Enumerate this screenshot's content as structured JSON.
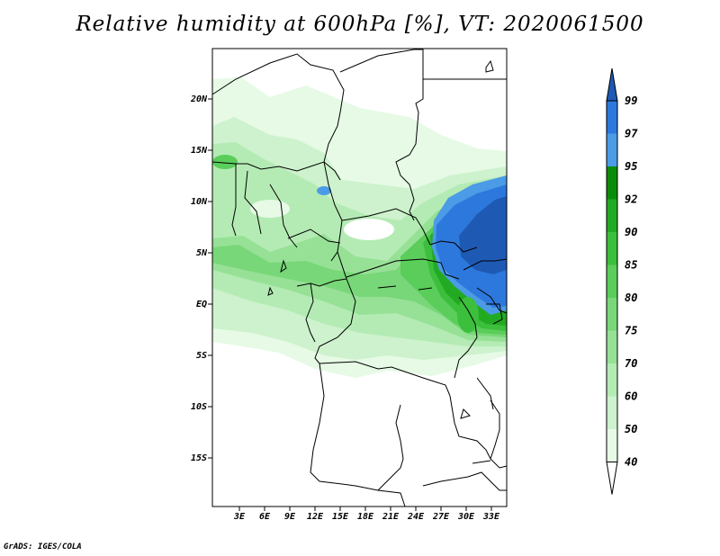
{
  "title": "Relative humidity at 600hPa [%], VT: 2020061500",
  "credit": "GrADS: IGES/COLA",
  "lon_ticks": [
    "3E",
    "6E",
    "9E",
    "12E",
    "15E",
    "18E",
    "21E",
    "24E",
    "27E",
    "30E",
    "33E"
  ],
  "lat_ticks": [
    "20N",
    "15N",
    "10N",
    "5N",
    "EQ",
    "5S",
    "10S",
    "15S"
  ],
  "colorbar": {
    "levels": [
      "40",
      "50",
      "60",
      "70",
      "75",
      "80",
      "85",
      "90",
      "92",
      "95",
      "97",
      "99"
    ],
    "colors": [
      "#ffffff",
      "#e6fae6",
      "#cdf2cd",
      "#b4ebb4",
      "#96e196",
      "#78d778",
      "#5acd5a",
      "#3cbf3c",
      "#23aa23",
      "#0a8c0a",
      "#4b9be6",
      "#2d78dc",
      "#1e5ab4"
    ]
  }
}
